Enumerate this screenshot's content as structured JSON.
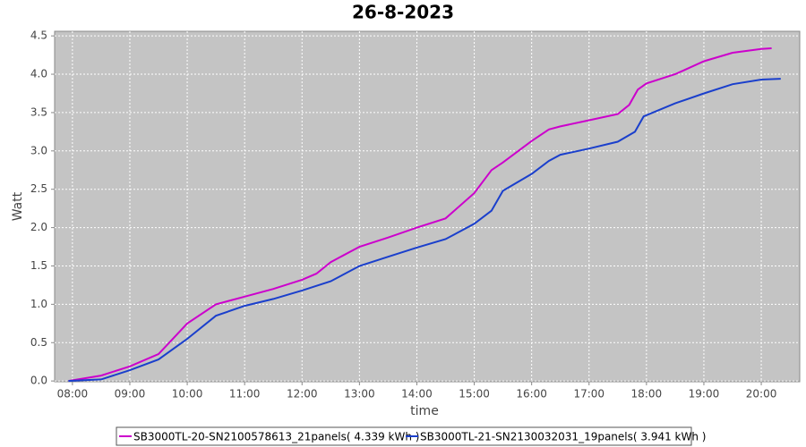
{
  "chart_data": {
    "type": "line",
    "title": "26-8-2023",
    "x_label": "time",
    "y_label": "Watt",
    "xlim": [
      7.69,
      20.67
    ],
    "xticks": [
      {
        "value": 8,
        "label": "08:00"
      },
      {
        "value": 9,
        "label": "09:00"
      },
      {
        "value": 10,
        "label": "10:00"
      },
      {
        "value": 11,
        "label": "11:00"
      },
      {
        "value": 12,
        "label": "12:00"
      },
      {
        "value": 13,
        "label": "13:00"
      },
      {
        "value": 14,
        "label": "14:00"
      },
      {
        "value": 15,
        "label": "15:00"
      },
      {
        "value": 16,
        "label": "16:00"
      },
      {
        "value": 17,
        "label": "17:00"
      },
      {
        "value": 18,
        "label": "18:00"
      },
      {
        "value": 19,
        "label": "19:00"
      },
      {
        "value": 20,
        "label": "20:00"
      }
    ],
    "ylim": [
      -0.01,
      4.56
    ],
    "yticks": [
      {
        "value": 0,
        "label": "0.0"
      },
      0.5,
      {
        "value": 1,
        "label": "1.0"
      },
      1.5,
      {
        "value": 2,
        "label": "2.0"
      },
      2.5,
      {
        "value": 3,
        "label": "3.0"
      },
      3.5,
      {
        "value": 4,
        "label": "4.0"
      },
      4.5
    ],
    "grid": true,
    "series": [
      {
        "name": "SB3000TL-20-SN2100578613_21panels( 4.339 kWh )",
        "color": "#cc00cc",
        "x": [
          7.93,
          8.5,
          9.0,
          9.5,
          10.0,
          10.5,
          11.0,
          11.5,
          12.0,
          12.25,
          12.5,
          13.0,
          13.5,
          14.0,
          14.5,
          15.0,
          15.3,
          15.5,
          16.0,
          16.3,
          16.5,
          17.0,
          17.5,
          17.7,
          17.85,
          18.0,
          18.5,
          19.0,
          19.5,
          20.0,
          20.18
        ],
        "values": [
          0,
          0.07,
          0.19,
          0.35,
          0.75,
          1.0,
          1.1,
          1.2,
          1.32,
          1.4,
          1.55,
          1.75,
          1.87,
          2.0,
          2.12,
          2.45,
          2.75,
          2.85,
          3.13,
          3.28,
          3.32,
          3.4,
          3.48,
          3.6,
          3.8,
          3.88,
          4.0,
          4.17,
          4.28,
          4.33,
          4.339
        ]
      },
      {
        "name": "SB3000TL-21-SN2130032031_19panels( 3.941 kWh )",
        "color": "#1a3fcc",
        "x": [
          7.93,
          8.5,
          9.0,
          9.5,
          10.0,
          10.5,
          11.0,
          11.5,
          12.0,
          12.5,
          13.0,
          13.5,
          14.0,
          14.5,
          15.0,
          15.3,
          15.5,
          16.0,
          16.3,
          16.5,
          17.0,
          17.5,
          17.8,
          17.95,
          18.5,
          19.0,
          19.5,
          20.0,
          20.34
        ],
        "values": [
          0,
          0.02,
          0.14,
          0.28,
          0.55,
          0.85,
          0.98,
          1.07,
          1.18,
          1.3,
          1.5,
          1.62,
          1.74,
          1.85,
          2.05,
          2.22,
          2.48,
          2.7,
          2.87,
          2.95,
          3.03,
          3.12,
          3.25,
          3.45,
          3.62,
          3.75,
          3.87,
          3.93,
          3.941
        ]
      }
    ]
  }
}
